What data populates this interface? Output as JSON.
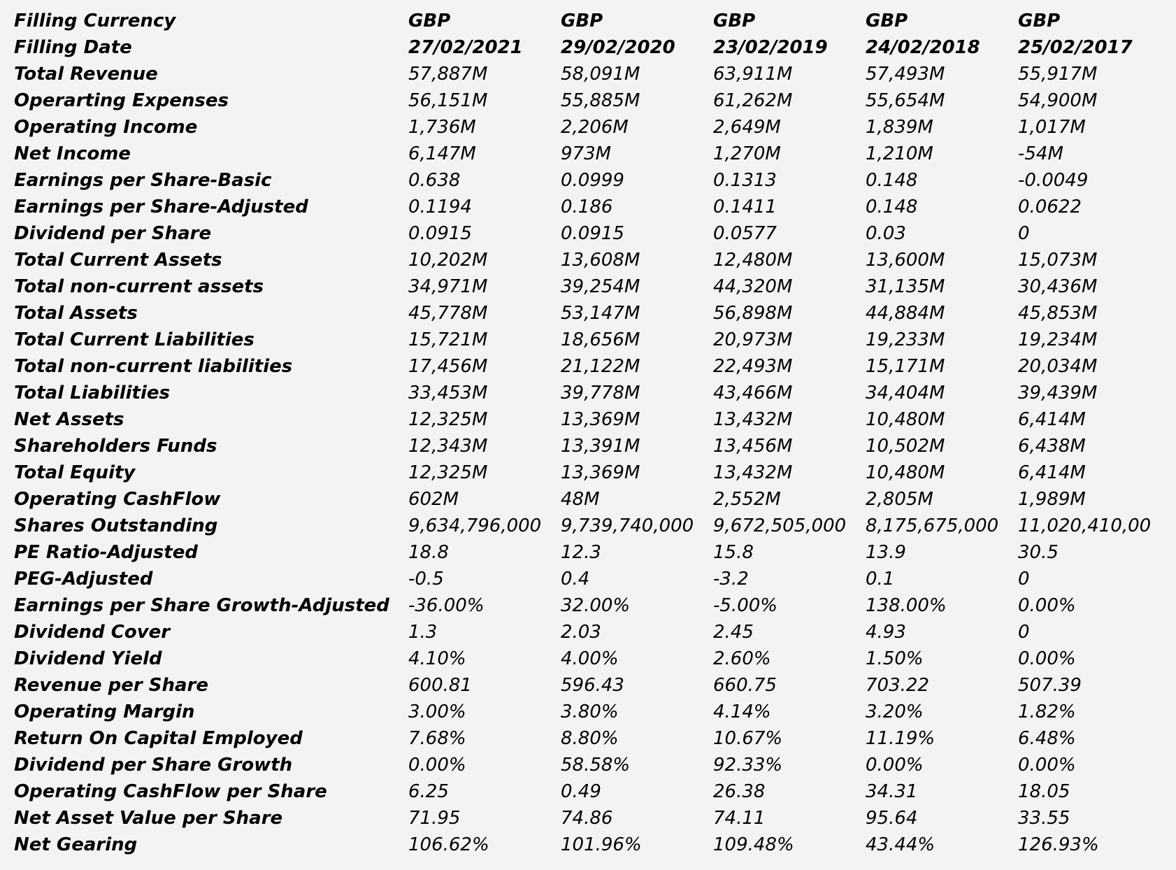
{
  "table": {
    "header_rows": [
      {
        "label": "Filling Currency",
        "values": [
          "GBP",
          "GBP",
          "GBP",
          "GBP",
          "GBP"
        ]
      },
      {
        "label": "Filling Date",
        "values": [
          "27/02/2021",
          "29/02/2020",
          "23/02/2019",
          "24/02/2018",
          "25/02/2017"
        ]
      }
    ],
    "rows": [
      {
        "label": "Total Revenue",
        "values": [
          "57,887M",
          "58,091M",
          "63,911M",
          "57,493M",
          "55,917M"
        ]
      },
      {
        "label": "Operarting Expenses",
        "values": [
          "56,151M",
          "55,885M",
          "61,262M",
          "55,654M",
          "54,900M"
        ]
      },
      {
        "label": "Operating Income",
        "values": [
          "1,736M",
          "2,206M",
          "2,649M",
          "1,839M",
          "1,017M"
        ]
      },
      {
        "label": "Net Income",
        "values": [
          "6,147M",
          "973M",
          "1,270M",
          "1,210M",
          "-54M"
        ]
      },
      {
        "label": "Earnings per Share-Basic",
        "values": [
          "0.638",
          "0.0999",
          "0.1313",
          "0.148",
          "-0.0049"
        ]
      },
      {
        "label": "Earnings per Share-Adjusted",
        "values": [
          "0.1194",
          "0.186",
          "0.1411",
          "0.148",
          "0.0622"
        ]
      },
      {
        "label": "Dividend per Share",
        "values": [
          "0.0915",
          "0.0915",
          "0.0577",
          "0.03",
          "0"
        ]
      },
      {
        "label": "Total Current Assets",
        "values": [
          "10,202M",
          "13,608M",
          "12,480M",
          "13,600M",
          "15,073M"
        ]
      },
      {
        "label": "Total non-current assets",
        "values": [
          "34,971M",
          "39,254M",
          "44,320M",
          "31,135M",
          "30,436M"
        ]
      },
      {
        "label": "Total Assets",
        "values": [
          "45,778M",
          "53,147M",
          "56,898M",
          "44,884M",
          "45,853M"
        ]
      },
      {
        "label": "Total Current Liabilities",
        "values": [
          "15,721M",
          "18,656M",
          "20,973M",
          "19,233M",
          "19,234M"
        ]
      },
      {
        "label": "Total non-current liabilities",
        "values": [
          "17,456M",
          "21,122M",
          "22,493M",
          "15,171M",
          "20,034M"
        ]
      },
      {
        "label": "Total Liabilities",
        "values": [
          "33,453M",
          "39,778M",
          "43,466M",
          "34,404M",
          "39,439M"
        ]
      },
      {
        "label": "Net Assets",
        "values": [
          "12,325M",
          "13,369M",
          "13,432M",
          "10,480M",
          "6,414M"
        ]
      },
      {
        "label": "Shareholders Funds",
        "values": [
          "12,343M",
          "13,391M",
          "13,456M",
          "10,502M",
          "6,438M"
        ]
      },
      {
        "label": "Total Equity",
        "values": [
          "12,325M",
          "13,369M",
          "13,432M",
          "10,480M",
          "6,414M"
        ]
      },
      {
        "label": "Operating CashFlow",
        "values": [
          "602M",
          "48M",
          "2,552M",
          "2,805M",
          "1,989M"
        ]
      },
      {
        "label": "Shares Outstanding",
        "values": [
          "9,634,796,000",
          "9,739,740,000",
          "9,672,505,000",
          "8,175,675,000",
          "11,020,410,00"
        ]
      },
      {
        "label": "PE Ratio-Adjusted",
        "values": [
          "18.8",
          "12.3",
          "15.8",
          "13.9",
          "30.5"
        ]
      },
      {
        "label": "PEG-Adjusted",
        "values": [
          "-0.5",
          "0.4",
          "-3.2",
          "0.1",
          "0"
        ]
      },
      {
        "label": "Earnings per Share Growth-Adjusted",
        "values": [
          "-36.00%",
          "32.00%",
          "-5.00%",
          "138.00%",
          "0.00%"
        ]
      },
      {
        "label": "Dividend Cover",
        "values": [
          "1.3",
          "2.03",
          "2.45",
          "4.93",
          "0"
        ]
      },
      {
        "label": "Dividend Yield",
        "values": [
          "4.10%",
          "4.00%",
          "2.60%",
          "1.50%",
          "0.00%"
        ]
      },
      {
        "label": "Revenue per Share",
        "values": [
          "600.81",
          "596.43",
          "660.75",
          "703.22",
          "507.39"
        ]
      },
      {
        "label": "Operating Margin",
        "values": [
          "3.00%",
          "3.80%",
          "4.14%",
          "3.20%",
          "1.82%"
        ]
      },
      {
        "label": "Return On Capital Employed",
        "values": [
          "7.68%",
          "8.80%",
          "10.67%",
          "11.19%",
          "6.48%"
        ]
      },
      {
        "label": "Dividend per Share Growth",
        "values": [
          "0.00%",
          "58.58%",
          "92.33%",
          "0.00%",
          "0.00%"
        ]
      },
      {
        "label": "Operating CashFlow per Share",
        "values": [
          "6.25",
          "0.49",
          "26.38",
          "34.31",
          "18.05"
        ]
      },
      {
        "label": "Net Asset Value per Share",
        "values": [
          "71.95",
          "74.86",
          "74.11",
          "95.64",
          "33.55"
        ]
      },
      {
        "label": "Net Gearing",
        "values": [
          "106.62%",
          "101.96%",
          "109.48%",
          "43.44%",
          "126.93%"
        ]
      }
    ]
  }
}
